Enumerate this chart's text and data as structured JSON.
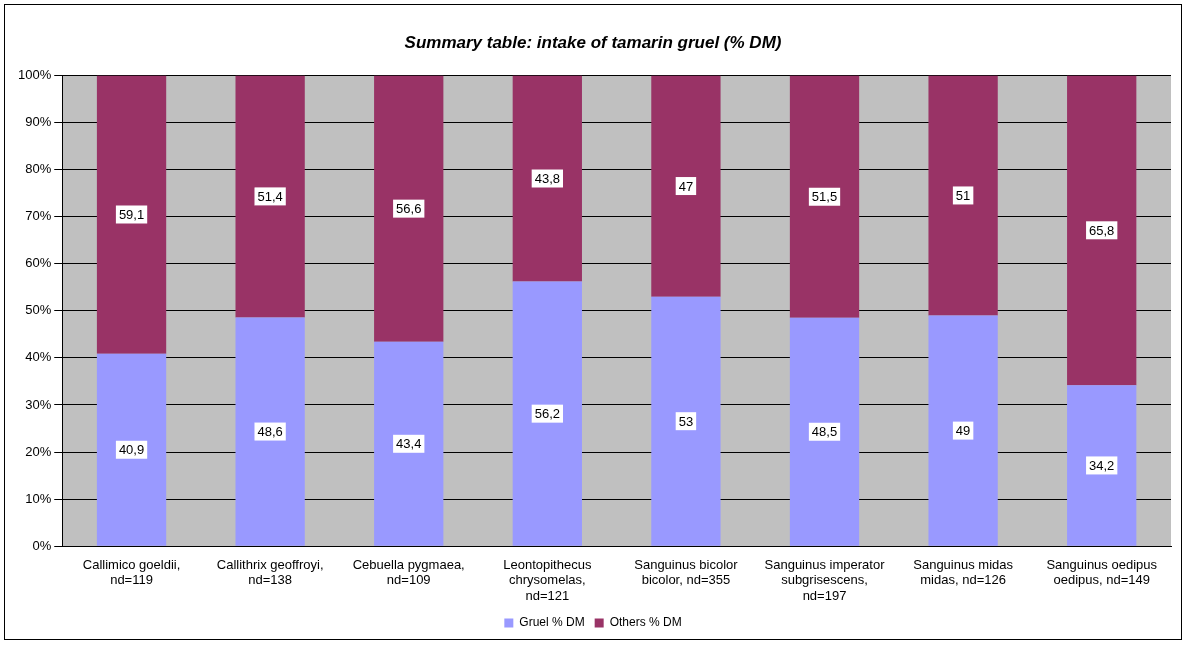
{
  "chart_data": {
    "type": "bar",
    "title": "Summary table: intake of tamarin gruel (% DM)",
    "categories": [
      "Callimico goeldii, nd=119",
      "Callithrix geoffroyi, nd=138",
      "Cebuella pygmaea, nd=109",
      "Leontopithecus chrysomelas, nd=121",
      "Sanguinus bicolor bicolor, nd=355",
      "Sanguinus imperator subgrisescens, nd=197",
      "Sanguinus midas midas, nd=126",
      "Sanguinus oedipus oedipus, nd=149"
    ],
    "stacked": true,
    "series": [
      {
        "name": "Gruel % DM",
        "color": "#9999ff",
        "values": [
          40.9,
          48.6,
          43.4,
          56.2,
          53,
          48.5,
          49,
          34.2
        ],
        "value_labels": [
          "40,9",
          "48,6",
          "43,4",
          "56,2",
          "53",
          "48,5",
          "49",
          "34,2"
        ]
      },
      {
        "name": "Others % DM",
        "color": "#993366",
        "values": [
          59.1,
          51.4,
          56.6,
          43.8,
          47,
          51.5,
          51,
          65.8
        ],
        "value_labels": [
          "59,1",
          "51,4",
          "56,6",
          "43,8",
          "47",
          "51,5",
          "51",
          "65,8"
        ]
      }
    ],
    "ylim": [
      0,
      100
    ],
    "yticks": [
      {
        "value": 0,
        "label": "0%"
      },
      {
        "value": 10,
        "label": "10%"
      },
      {
        "value": 20,
        "label": "20%"
      },
      {
        "value": 30,
        "label": "30%"
      },
      {
        "value": 40,
        "label": "40%"
      },
      {
        "value": 50,
        "label": "50%"
      },
      {
        "value": 60,
        "label": "60%"
      },
      {
        "value": 70,
        "label": "70%"
      },
      {
        "value": 80,
        "label": "80%"
      },
      {
        "value": 90,
        "label": "90%"
      },
      {
        "value": 100,
        "label": "100%"
      }
    ],
    "grid": "y",
    "legend": "bottom"
  }
}
